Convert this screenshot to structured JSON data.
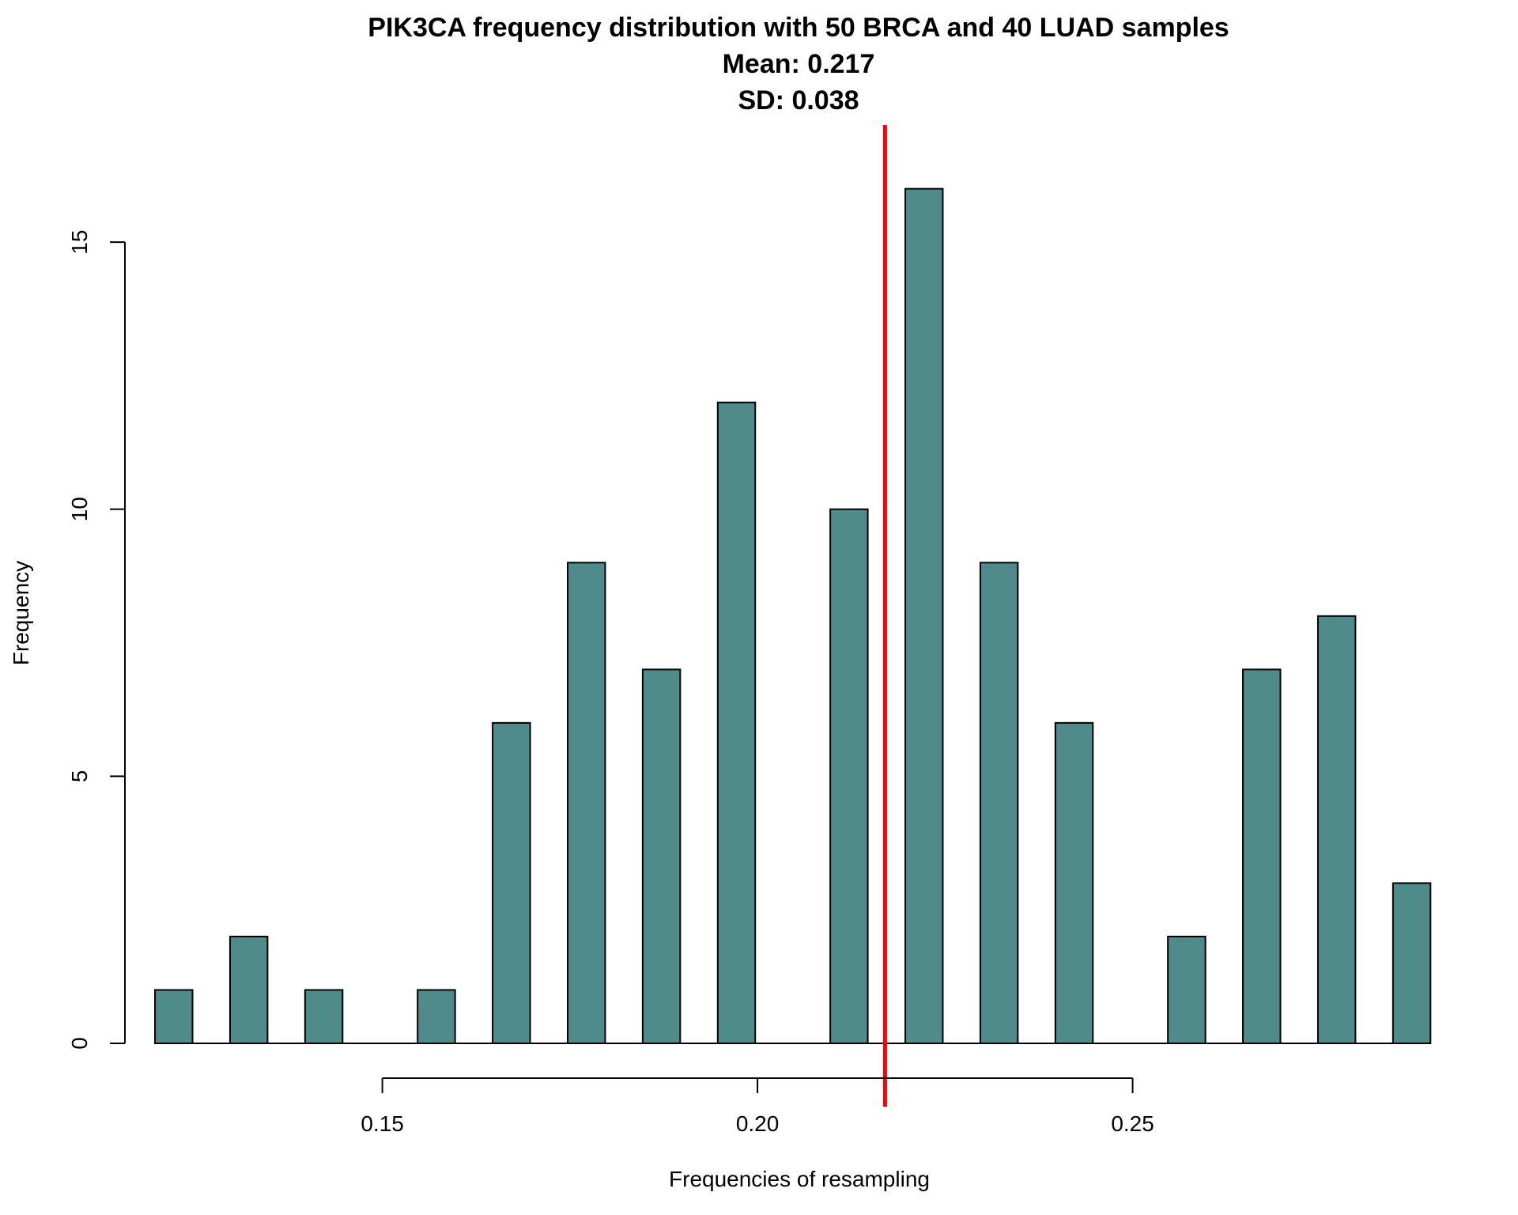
{
  "chart_data": {
    "type": "bar",
    "title": "PIK3CA frequency distribution with 50 BRCA and 40 LUAD samples",
    "subtitle_lines": [
      "Mean: 0.217",
      "SD: 0.038"
    ],
    "xlabel": "Frequencies of resampling",
    "ylabel": "Frequency",
    "x_ticks": [
      0.15,
      0.2,
      0.25
    ],
    "x_tick_labels": [
      "0.15",
      "0.20",
      "0.25"
    ],
    "y_ticks": [
      0,
      5,
      10,
      15
    ],
    "y_tick_labels": [
      "0",
      "5",
      "10",
      "15"
    ],
    "xlim": [
      0.1159,
      0.2903
    ],
    "ylim": [
      0,
      16.75
    ],
    "bar_width": 0.005,
    "bins": [
      {
        "x": 0.1222,
        "count": 1
      },
      {
        "x": 0.1322,
        "count": 2
      },
      {
        "x": 0.1422,
        "count": 1
      },
      {
        "x": 0.1522,
        "count": 0
      },
      {
        "x": 0.1572,
        "count": 1
      },
      {
        "x": 0.1672,
        "count": 6
      },
      {
        "x": 0.1772,
        "count": 9
      },
      {
        "x": 0.1872,
        "count": 7
      },
      {
        "x": 0.1972,
        "count": 12
      },
      {
        "x": 0.2072,
        "count": 0
      },
      {
        "x": 0.2122,
        "count": 10
      },
      {
        "x": 0.2222,
        "count": 16
      },
      {
        "x": 0.2322,
        "count": 9
      },
      {
        "x": 0.2422,
        "count": 6
      },
      {
        "x": 0.2522,
        "count": 0
      },
      {
        "x": 0.2572,
        "count": 2
      },
      {
        "x": 0.2672,
        "count": 7
      },
      {
        "x": 0.2772,
        "count": 8
      },
      {
        "x": 0.2872,
        "count": 3
      }
    ],
    "mean_line": {
      "x": 0.217,
      "color": "#ff0000"
    },
    "bar_color": "#4f8b8b",
    "grid": false,
    "legend": "none"
  }
}
